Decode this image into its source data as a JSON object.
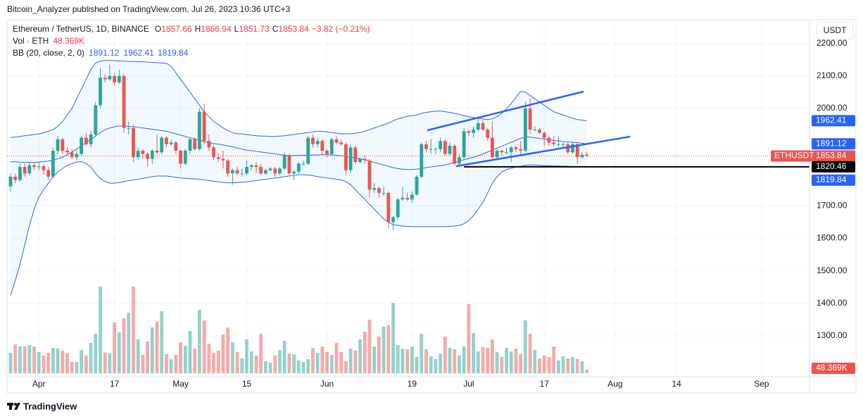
{
  "header": "Bitcoin_Analyzer published on TradingView.com, Jul 26, 2023 10:36 UTC+3",
  "footer": "TradingView",
  "chart_data": {
    "type": "candlestick",
    "legend": {
      "symbol": "Ethereum / TetherUS, 1D, BINANCE",
      "ohlc_labels": [
        "O",
        "H",
        "L",
        "C"
      ],
      "change": "−3.82 (−0.21%)",
      "vol_label": "Vol · ETH",
      "bb_label": "BB (20, close, 2, 0)"
    },
    "currency": "USDT",
    "symbol_badge": "ETHUSDT",
    "volume_label": "48.369K",
    "colors": {
      "up": "#26a69a",
      "down": "#ef5350",
      "band": "#2962ff",
      "level": "#000000"
    },
    "ylim": [
      1174,
      2269
    ],
    "vlim": [
      0,
      5000
    ],
    "yticks": [
      {
        "value": 2200,
        "label": "2200.00"
      },
      {
        "value": 2100,
        "label": "2100.00"
      },
      {
        "value": 2000,
        "label": "2000.00"
      },
      {
        "value": 1700,
        "label": "1700.00"
      },
      {
        "value": 1600,
        "label": "1600.00"
      },
      {
        "value": 1500,
        "label": "1500.00"
      },
      {
        "value": 1400,
        "label": "1400.00"
      },
      {
        "value": 1300,
        "label": "1300.00"
      }
    ],
    "xticks": [
      {
        "value": 6,
        "label": "Apr"
      },
      {
        "value": 22,
        "label": "17"
      },
      {
        "value": 36,
        "label": "May"
      },
      {
        "value": 50,
        "label": "15"
      },
      {
        "value": 67,
        "label": "Jun"
      },
      {
        "value": 85,
        "label": "19"
      },
      {
        "value": 97,
        "label": "Jul"
      },
      {
        "value": 113,
        "label": "17"
      },
      {
        "value": 128,
        "label": "Aug"
      },
      {
        "value": 141,
        "label": "14"
      },
      {
        "value": 159,
        "label": "Sep"
      }
    ],
    "level": 1820.46,
    "ohlc": [
      [
        1760,
        1800,
        1745,
        1790
      ],
      [
        1790,
        1800,
        1770,
        1780
      ],
      [
        1780,
        1830,
        1775,
        1820
      ],
      [
        1820,
        1830,
        1790,
        1800
      ],
      [
        1800,
        1835,
        1795,
        1825
      ],
      [
        1825,
        1835,
        1810,
        1820
      ],
      [
        1820,
        1835,
        1810,
        1822
      ],
      [
        1822,
        1828,
        1795,
        1810
      ],
      [
        1810,
        1820,
        1780,
        1790
      ],
      [
        1790,
        1880,
        1785,
        1870
      ],
      [
        1870,
        1915,
        1860,
        1905
      ],
      [
        1905,
        1910,
        1860,
        1870
      ],
      [
        1870,
        1880,
        1855,
        1865
      ],
      [
        1865,
        1875,
        1845,
        1850
      ],
      [
        1850,
        1870,
        1840,
        1860
      ],
      [
        1860,
        1915,
        1855,
        1910
      ],
      [
        1910,
        1925,
        1885,
        1890
      ],
      [
        1890,
        1930,
        1880,
        1920
      ],
      [
        1920,
        2020,
        1915,
        2010
      ],
      [
        2010,
        2125,
        2000,
        2095
      ],
      [
        2095,
        2105,
        2080,
        2090
      ],
      [
        2090,
        2135,
        2085,
        2100
      ],
      [
        2100,
        2110,
        2070,
        2080
      ],
      [
        2080,
        2120,
        2075,
        2100
      ],
      [
        2100,
        2105,
        1925,
        1940
      ],
      [
        1940,
        1960,
        1920,
        1940
      ],
      [
        1940,
        1950,
        1835,
        1850
      ],
      [
        1850,
        1880,
        1840,
        1870
      ],
      [
        1870,
        1875,
        1845,
        1860
      ],
      [
        1860,
        1865,
        1820,
        1845
      ],
      [
        1845,
        1875,
        1830,
        1870
      ],
      [
        1870,
        1920,
        1860,
        1865
      ],
      [
        1865,
        1915,
        1860,
        1910
      ],
      [
        1910,
        1915,
        1880,
        1890
      ],
      [
        1890,
        1905,
        1885,
        1895
      ],
      [
        1895,
        1900,
        1860,
        1870
      ],
      [
        1870,
        1875,
        1815,
        1830
      ],
      [
        1830,
        1875,
        1825,
        1870
      ],
      [
        1870,
        1910,
        1860,
        1905
      ],
      [
        1905,
        1910,
        1870,
        1875
      ],
      [
        1875,
        2000,
        1870,
        1990
      ],
      [
        1990,
        2015,
        1890,
        1900
      ],
      [
        1900,
        1920,
        1870,
        1880
      ],
      [
        1880,
        1885,
        1840,
        1850
      ],
      [
        1850,
        1860,
        1835,
        1845
      ],
      [
        1845,
        1870,
        1815,
        1840
      ],
      [
        1840,
        1845,
        1790,
        1800
      ],
      [
        1800,
        1815,
        1765,
        1810
      ],
      [
        1810,
        1820,
        1795,
        1800
      ],
      [
        1800,
        1815,
        1790,
        1800
      ],
      [
        1800,
        1840,
        1795,
        1820
      ],
      [
        1820,
        1830,
        1810,
        1825
      ],
      [
        1825,
        1835,
        1800,
        1820
      ],
      [
        1820,
        1830,
        1795,
        1800
      ],
      [
        1800,
        1815,
        1795,
        1810
      ],
      [
        1810,
        1820,
        1805,
        1815
      ],
      [
        1815,
        1820,
        1790,
        1800
      ],
      [
        1800,
        1820,
        1795,
        1815
      ],
      [
        1815,
        1865,
        1810,
        1855
      ],
      [
        1855,
        1860,
        1795,
        1800
      ],
      [
        1800,
        1810,
        1780,
        1805
      ],
      [
        1805,
        1835,
        1800,
        1830
      ],
      [
        1830,
        1840,
        1825,
        1830
      ],
      [
        1830,
        1915,
        1825,
        1910
      ],
      [
        1910,
        1920,
        1880,
        1890
      ],
      [
        1890,
        1910,
        1880,
        1900
      ],
      [
        1900,
        1905,
        1860,
        1870
      ],
      [
        1870,
        1875,
        1850,
        1860
      ],
      [
        1860,
        1910,
        1855,
        1905
      ],
      [
        1905,
        1915,
        1890,
        1895
      ],
      [
        1895,
        1905,
        1885,
        1890
      ],
      [
        1890,
        1895,
        1795,
        1810
      ],
      [
        1810,
        1890,
        1800,
        1880
      ],
      [
        1880,
        1885,
        1830,
        1835
      ],
      [
        1835,
        1850,
        1830,
        1845
      ],
      [
        1845,
        1855,
        1830,
        1840
      ],
      [
        1840,
        1845,
        1725,
        1750
      ],
      [
        1750,
        1770,
        1740,
        1755
      ],
      [
        1755,
        1760,
        1725,
        1740
      ],
      [
        1740,
        1760,
        1730,
        1740
      ],
      [
        1740,
        1745,
        1630,
        1650
      ],
      [
        1650,
        1670,
        1625,
        1665
      ],
      [
        1665,
        1725,
        1660,
        1720
      ],
      [
        1720,
        1760,
        1715,
        1725
      ],
      [
        1725,
        1740,
        1715,
        1720
      ],
      [
        1720,
        1745,
        1710,
        1735
      ],
      [
        1735,
        1795,
        1730,
        1790
      ],
      [
        1790,
        1895,
        1785,
        1890
      ],
      [
        1890,
        1900,
        1865,
        1875
      ],
      [
        1875,
        1905,
        1860,
        1875
      ],
      [
        1875,
        1880,
        1860,
        1875
      ],
      [
        1875,
        1910,
        1865,
        1900
      ],
      [
        1900,
        1905,
        1855,
        1860
      ],
      [
        1860,
        1895,
        1855,
        1885
      ],
      [
        1885,
        1890,
        1825,
        1830
      ],
      [
        1830,
        1860,
        1825,
        1850
      ],
      [
        1850,
        1940,
        1840,
        1930
      ],
      [
        1930,
        1935,
        1915,
        1925
      ],
      [
        1925,
        1945,
        1910,
        1935
      ],
      [
        1935,
        1975,
        1930,
        1955
      ],
      [
        1955,
        1965,
        1930,
        1935
      ],
      [
        1935,
        1940,
        1900,
        1910
      ],
      [
        1910,
        1960,
        1845,
        1850
      ],
      [
        1850,
        1875,
        1840,
        1870
      ],
      [
        1870,
        1875,
        1855,
        1865
      ],
      [
        1865,
        1880,
        1860,
        1865
      ],
      [
        1865,
        1885,
        1835,
        1880
      ],
      [
        1880,
        1885,
        1865,
        1875
      ],
      [
        1875,
        1900,
        1860,
        1870
      ],
      [
        1870,
        2020,
        1865,
        2000
      ],
      [
        2000,
        2030,
        1920,
        1935
      ],
      [
        1935,
        1945,
        1930,
        1935
      ],
      [
        1935,
        1940,
        1920,
        1925
      ],
      [
        1925,
        1930,
        1885,
        1910
      ],
      [
        1910,
        1915,
        1885,
        1895
      ],
      [
        1895,
        1915,
        1885,
        1890
      ],
      [
        1890,
        1915,
        1880,
        1890
      ],
      [
        1890,
        1895,
        1880,
        1890
      ],
      [
        1890,
        1895,
        1860,
        1865
      ],
      [
        1865,
        1895,
        1860,
        1890
      ],
      [
        1890,
        1895,
        1830,
        1850
      ],
      [
        1850,
        1865,
        1845,
        1857.66
      ],
      [
        1857.66,
        1866.94,
        1851.73,
        1853.84
      ]
    ],
    "volume": [
      290,
      410,
      380,
      380,
      400,
      380,
      300,
      250,
      290,
      360,
      350,
      320,
      290,
      160,
      160,
      330,
      250,
      430,
      560,
      1230,
      290,
      280,
      720,
      580,
      780,
      860,
      1230,
      480,
      260,
      450,
      650,
      730,
      880,
      270,
      200,
      260,
      440,
      390,
      600,
      350,
      900,
      750,
      420,
      290,
      320,
      550,
      650,
      440,
      300,
      210,
      480,
      310,
      250,
      560,
      170,
      150,
      250,
      330,
      460,
      280,
      270,
      180,
      160,
      200,
      360,
      290,
      380,
      300,
      260,
      430,
      300,
      170,
      350,
      320,
      480,
      590,
      760,
      380,
      520,
      660,
      680,
      1000,
      400,
      350,
      340,
      380,
      230,
      560,
      340,
      240,
      200,
      280,
      520,
      360,
      340,
      250,
      380,
      980,
      570,
      310,
      370,
      360,
      480,
      300,
      230,
      360,
      310,
      350,
      270,
      750,
      560,
      330,
      210,
      250,
      230,
      380,
      180,
      240,
      210,
      230,
      200,
      170,
      48.369
    ],
    "bb_upper": [
      1911,
      1912,
      1914,
      1916,
      1918,
      1920,
      1922,
      1925,
      1930,
      1935,
      1945,
      1960,
      1980,
      2000,
      2030,
      2060,
      2090,
      2120,
      2140,
      2146,
      2148,
      2148,
      2147,
      2146,
      2146,
      2145,
      2145,
      2144,
      2144,
      2143,
      2142,
      2141,
      2140,
      2139,
      2130,
      2110,
      2090,
      2070,
      2050,
      2030,
      2010,
      1990,
      1975,
      1960,
      1950,
      1940,
      1932,
      1926,
      1922,
      1922,
      1920,
      1918,
      1916,
      1915,
      1915,
      1914,
      1914,
      1915,
      1916,
      1918,
      1920,
      1922,
      1924,
      1926,
      1928,
      1930,
      1930,
      1928,
      1926,
      1924,
      1922,
      1922,
      1922,
      1924,
      1926,
      1930,
      1935,
      1940,
      1945,
      1950,
      1955,
      1962,
      1968,
      1972,
      1976,
      1978,
      1980,
      1985,
      1988,
      1990,
      1992,
      1992,
      1990,
      1988,
      1985,
      1982,
      1978,
      1975,
      1972,
      1970,
      1968,
      1966,
      1968,
      1975,
      1985,
      2000,
      2015,
      2035,
      2053,
      2050,
      2040,
      2030,
      2020,
      2010,
      2000,
      1990,
      1985,
      1980,
      1975,
      1970,
      1966,
      1964,
      1962.41
    ],
    "bb_middle": [
      1836,
      1836,
      1835,
      1834,
      1834,
      1834,
      1835,
      1836,
      1838,
      1840,
      1845,
      1850,
      1858,
      1866,
      1875,
      1885,
      1895,
      1905,
      1915,
      1925,
      1935,
      1940,
      1944,
      1946,
      1946,
      1945,
      1944,
      1942,
      1940,
      1938,
      1936,
      1934,
      1932,
      1930,
      1926,
      1922,
      1918,
      1914,
      1910,
      1906,
      1902,
      1898,
      1895,
      1892,
      1890,
      1888,
      1885,
      1882,
      1878,
      1875,
      1872,
      1870,
      1868,
      1866,
      1864,
      1862,
      1860,
      1858,
      1856,
      1855,
      1855,
      1855,
      1856,
      1856,
      1857,
      1857,
      1858,
      1858,
      1857,
      1856,
      1854,
      1852,
      1850,
      1848,
      1845,
      1842,
      1838,
      1834,
      1830,
      1826,
      1822,
      1818,
      1815,
      1813,
      1812,
      1812,
      1813,
      1815,
      1818,
      1820,
      1822,
      1824,
      1826,
      1830,
      1834,
      1838,
      1842,
      1846,
      1850,
      1855,
      1860,
      1866,
      1872,
      1878,
      1884,
      1890,
      1896,
      1902,
      1908,
      1912,
      1912,
      1910,
      1908,
      1906,
      1904,
      1902,
      1900,
      1898,
      1897,
      1896,
      1895,
      1893,
      1891.12
    ],
    "bb_lower": [
      1424,
      1470,
      1520,
      1580,
      1640,
      1690,
      1727,
      1750,
      1770,
      1790,
      1805,
      1815,
      1825,
      1830,
      1835,
      1836,
      1830,
      1820,
      1800,
      1785,
      1775,
      1770,
      1770,
      1772,
      1775,
      1778,
      1780,
      1782,
      1785,
      1787,
      1790,
      1792,
      1792,
      1792,
      1790,
      1788,
      1786,
      1785,
      1784,
      1783,
      1782,
      1780,
      1778,
      1776,
      1774,
      1772,
      1771,
      1771,
      1772,
      1773,
      1774,
      1776,
      1778,
      1780,
      1782,
      1784,
      1786,
      1788,
      1790,
      1792,
      1794,
      1796,
      1796,
      1795,
      1793,
      1790,
      1788,
      1786,
      1784,
      1782,
      1780,
      1775,
      1765,
      1750,
      1735,
      1720,
      1705,
      1690,
      1675,
      1660,
      1650,
      1642,
      1640,
      1638,
      1637,
      1636,
      1636,
      1636,
      1636,
      1636,
      1636,
      1636,
      1636,
      1637,
      1638,
      1640,
      1645,
      1655,
      1670,
      1690,
      1710,
      1740,
      1770,
      1790,
      1805,
      1812,
      1816,
      1820,
      1822,
      1825,
      1826,
      1826,
      1825,
      1824,
      1824,
      1823,
      1823,
      1822,
      1822,
      1821,
      1821,
      1820,
      1819.84
    ]
  }
}
